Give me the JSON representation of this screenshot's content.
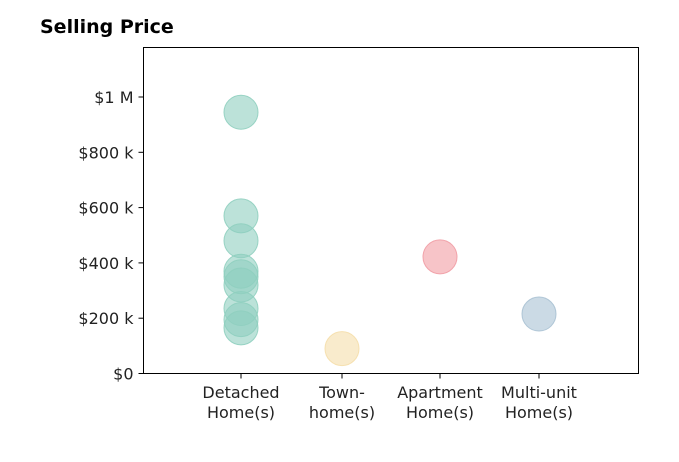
{
  "chart_data": {
    "type": "scatter",
    "title": "Selling Price",
    "xlabel": "",
    "ylabel": "",
    "categories": [
      [
        "Detached",
        "Home(s)"
      ],
      [
        "Town-",
        "home(s)"
      ],
      [
        "Apartment",
        "Home(s)"
      ],
      [
        "Multi-unit",
        "Home(s)"
      ]
    ],
    "colors": [
      "#8fcfbf",
      "#f5deaa",
      "#f19ca4",
      "#a9c1d3"
    ],
    "ylim": [
      0,
      1000000
    ],
    "yticks": [
      {
        "value": 0,
        "label": "$0"
      },
      {
        "value": 200000,
        "label": "$200 k"
      },
      {
        "value": 400000,
        "label": "$400 k"
      },
      {
        "value": 600000,
        "label": "$600 k"
      },
      {
        "value": 800000,
        "label": "$800 k"
      },
      {
        "value": 1000000,
        "label": "$1 M"
      }
    ],
    "series": [
      {
        "category": 0,
        "values": [
          945000,
          570000,
          480000,
          370000,
          350000,
          320000,
          235000,
          195000,
          165000
        ]
      },
      {
        "category": 1,
        "values": [
          90000
        ]
      },
      {
        "category": 2,
        "values": [
          422000
        ]
      },
      {
        "category": 3,
        "values": [
          215000
        ]
      }
    ],
    "grid": false,
    "legend": "none"
  }
}
